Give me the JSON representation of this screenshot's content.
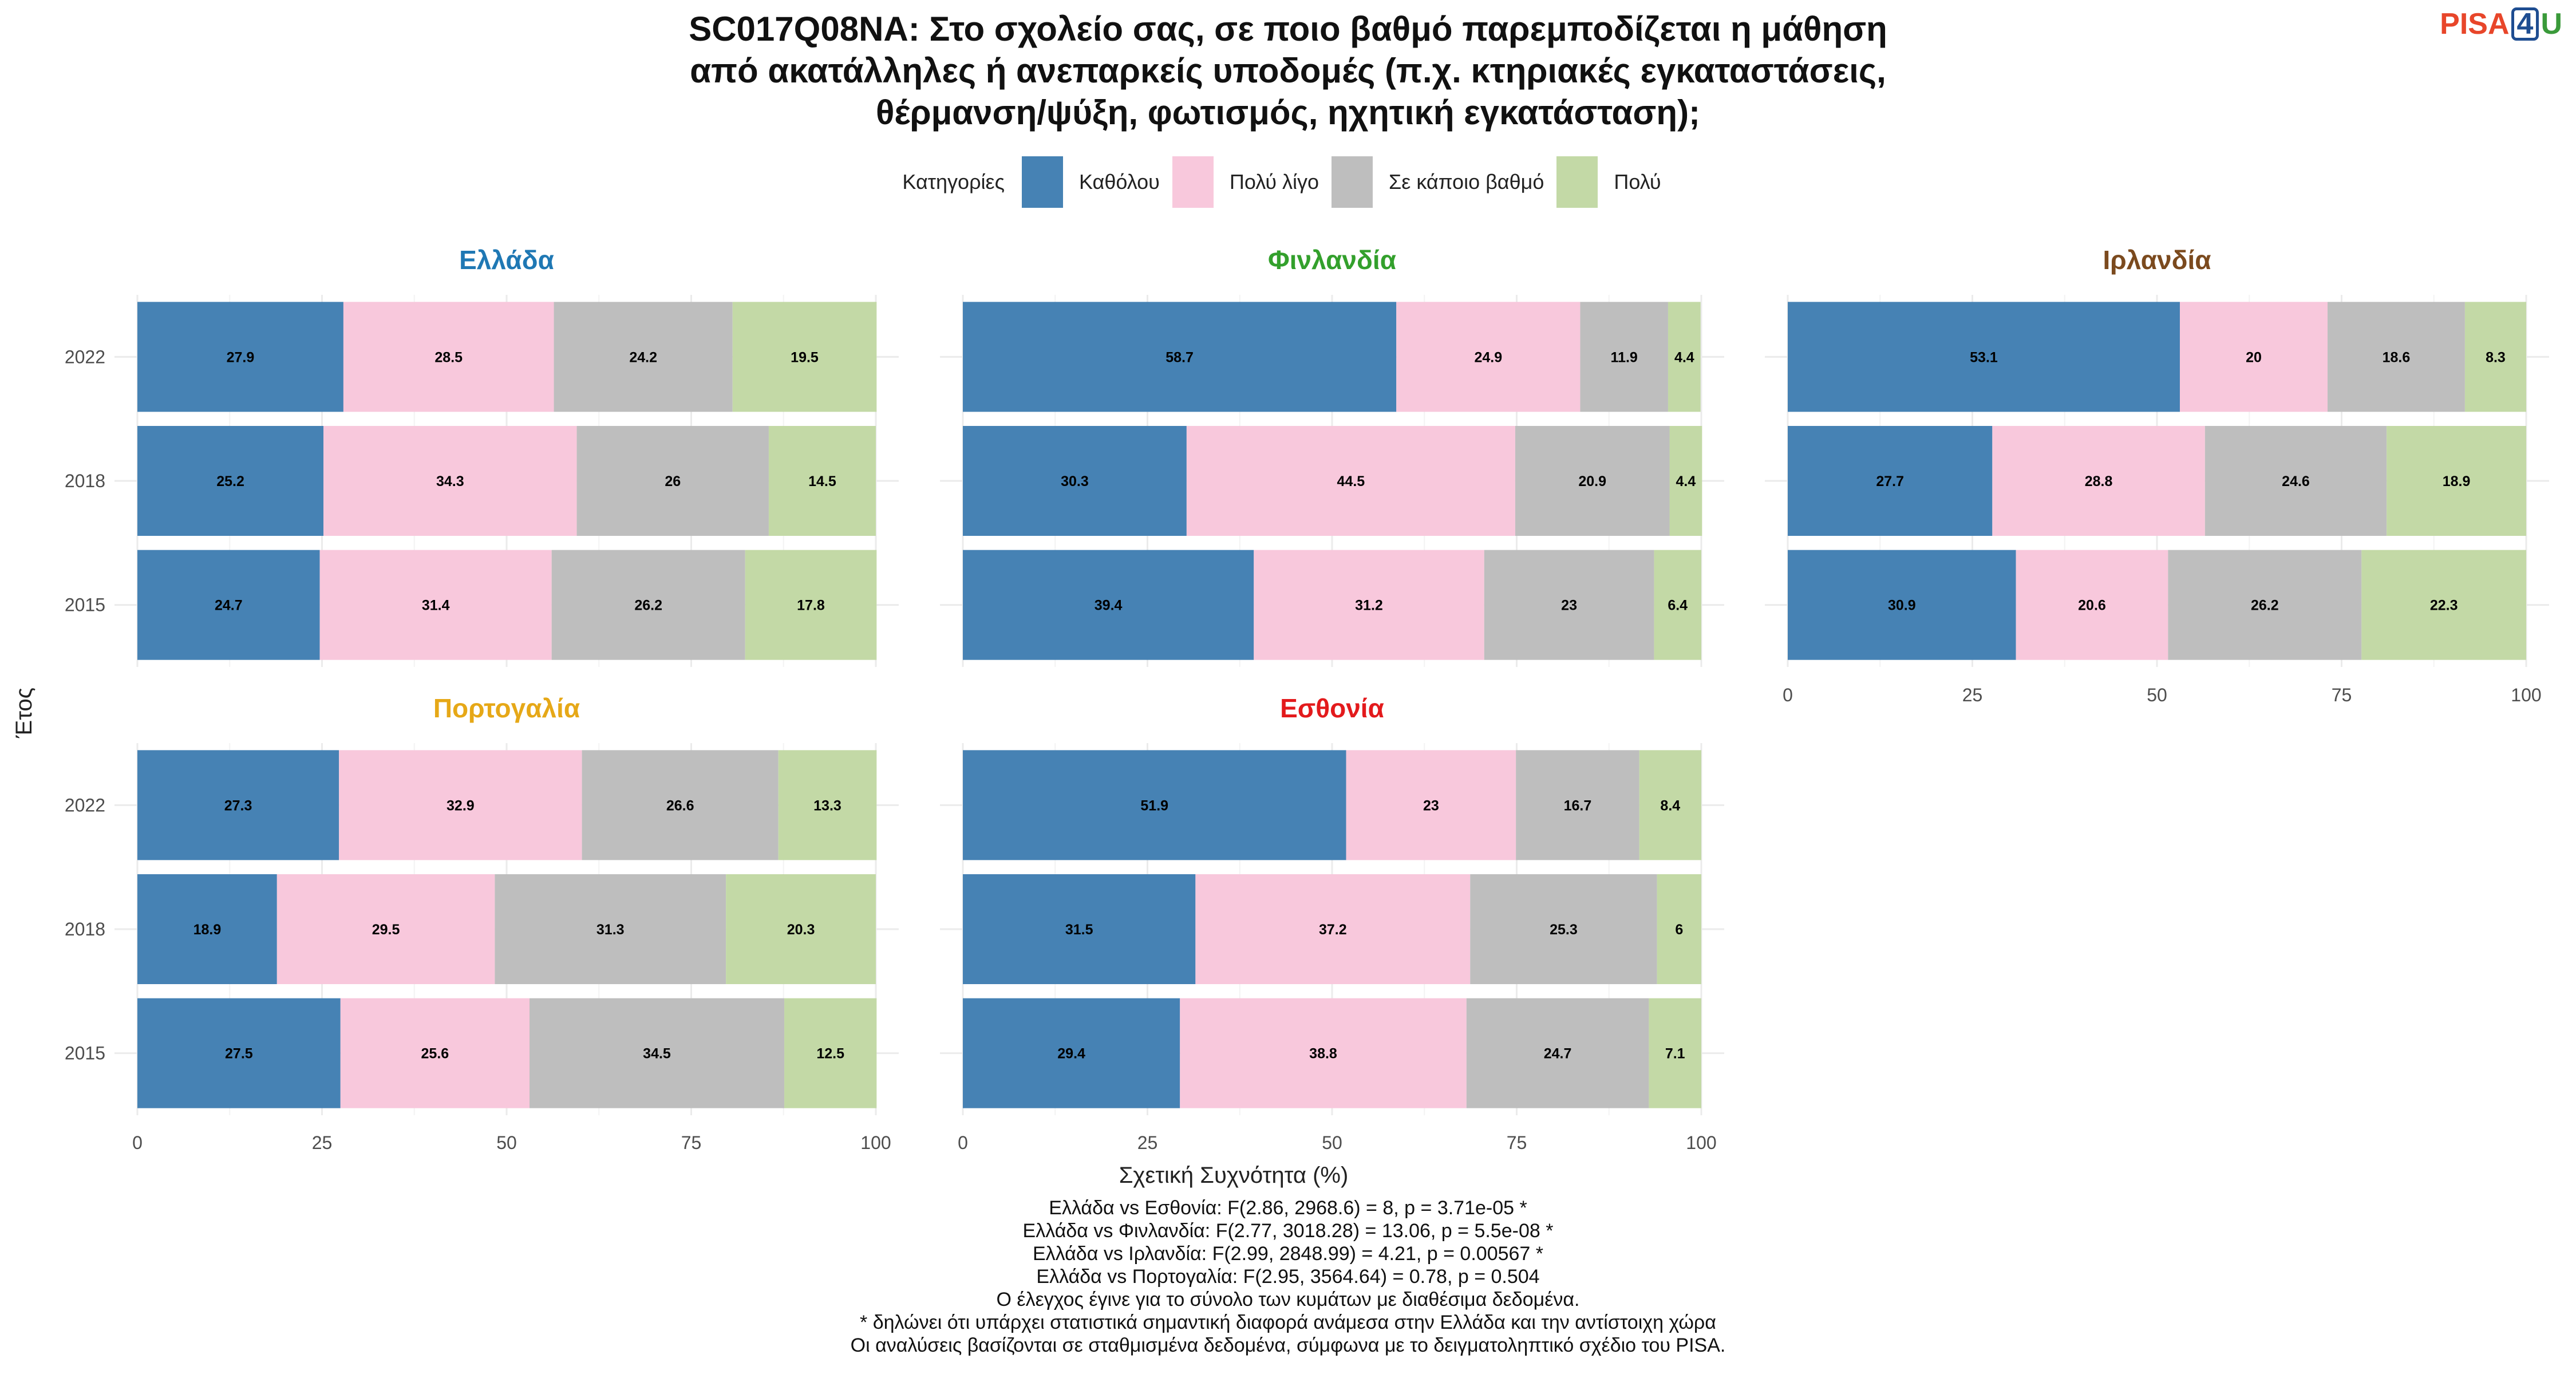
{
  "title_lines": [
    "SC017Q08NA: Στο σχολείο σας, σε ποιο βαθμό παρεμποδίζεται η μάθηση",
    "από ακατάλληλες ή ανεπαρκείς υποδομές (π.χ. κτηριακές εγκαταστάσεις,",
    "θέρμανση/ψύξη, φωτισμός, ηχητική εγκατάσταση);"
  ],
  "logo": {
    "part1": "PISA",
    "part2": "4",
    "part3": "U"
  },
  "legend": {
    "title": "Κατηγορίες",
    "items": [
      {
        "label": "Καθόλου",
        "color": "#4682b4"
      },
      {
        "label": "Πολύ λίγο",
        "color": "#f8c8dc"
      },
      {
        "label": "Σε κάποιο βαθμό",
        "color": "#bebebe"
      },
      {
        "label": "Πολύ",
        "color": "#c3d9a6"
      }
    ]
  },
  "chart_data": {
    "type": "bar",
    "orientation": "horizontal",
    "stacked": true,
    "xlabel": "Σχετική Συχνότητα (%)",
    "ylabel": "Έτος",
    "xlim": [
      0,
      100
    ],
    "xticks": [
      0,
      25,
      50,
      75,
      100
    ],
    "categories": [
      "2022",
      "2018",
      "2015"
    ],
    "series_names": [
      "Καθόλου",
      "Πολύ λίγο",
      "Σε κάποιο βαθμό",
      "Πολύ"
    ],
    "series_colors": [
      "#4682b4",
      "#f8c8dc",
      "#bebebe",
      "#c3d9a6"
    ],
    "panels": [
      {
        "name": "Ελλάδα",
        "color": "#1f78b4",
        "values": {
          "2022": [
            27.9,
            28.5,
            24.2,
            19.5
          ],
          "2018": [
            25.2,
            34.3,
            26,
            14.5
          ],
          "2015": [
            24.7,
            31.4,
            26.2,
            17.8
          ]
        }
      },
      {
        "name": "Φινλανδία",
        "color": "#33a02c",
        "values": {
          "2022": [
            58.7,
            24.9,
            11.9,
            4.4
          ],
          "2018": [
            30.3,
            44.5,
            20.9,
            4.4
          ],
          "2015": [
            39.4,
            31.2,
            23,
            6.4
          ]
        }
      },
      {
        "name": "Ιρλανδία",
        "color": "#7b4a1e",
        "values": {
          "2022": [
            53.1,
            20,
            18.6,
            8.3
          ],
          "2018": [
            27.7,
            28.8,
            24.6,
            18.9
          ],
          "2015": [
            30.9,
            20.6,
            26.2,
            22.3
          ]
        }
      },
      {
        "name": "Πορτογαλία",
        "color": "#e6a817",
        "values": {
          "2022": [
            27.3,
            32.9,
            26.6,
            13.3
          ],
          "2018": [
            18.9,
            29.5,
            31.3,
            20.3
          ],
          "2015": [
            27.5,
            25.6,
            34.5,
            12.5
          ]
        }
      },
      {
        "name": "Εσθονία",
        "color": "#e31a1c",
        "values": {
          "2022": [
            51.9,
            23,
            16.7,
            8.4
          ],
          "2018": [
            31.5,
            37.2,
            25.3,
            6
          ],
          "2015": [
            29.4,
            38.8,
            24.7,
            7.1
          ]
        }
      }
    ]
  },
  "caption_lines": [
    "Ελλάδα vs Εσθονία: F(2.86, 2968.6) = 8, p = 3.71e-05 *",
    "Ελλάδα vs Φινλανδία: F(2.77, 3018.28) = 13.06, p = 5.5e-08 *",
    "Ελλάδα vs Ιρλανδία: F(2.99, 2848.99) = 4.21, p = 0.00567 *",
    "Ελλάδα vs Πορτογαλία: F(2.95, 3564.64) = 0.78, p = 0.504",
    "Ο έλεγχος έγινε για το σύνολο των κυμάτων με διαθέσιμα δεδομένα.",
    "* δηλώνει ότι υπάρχει στατιστικά σημαντική διαφορά ανάμεσα στην Ελλάδα και την αντίστοιχη χώρα",
    "Οι αναλύσεις βασίζονται σε σταθμισμένα δεδομένα, σύμφωνα με το δειγματοληπτικό σχέδιο του PISA."
  ]
}
